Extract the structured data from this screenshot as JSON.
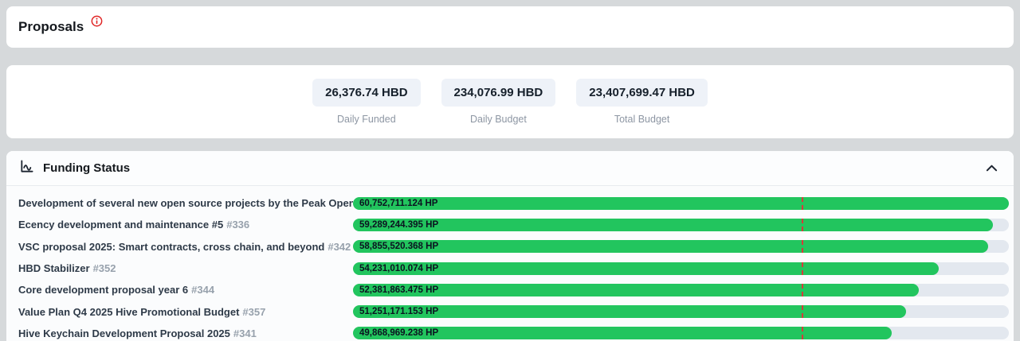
{
  "page_background": "#d6d9db",
  "header": {
    "title": "Proposals",
    "info_icon": "info-icon",
    "info_color": "#e02525"
  },
  "stats": [
    {
      "value": "26,376.74 HBD",
      "label": "Daily Funded"
    },
    {
      "value": "234,076.99 HBD",
      "label": "Daily Budget"
    },
    {
      "value": "23,407,699.47 HBD",
      "label": "Total Budget"
    }
  ],
  "funding_section": {
    "title": "Funding Status",
    "chart_icon": "line-chart-icon",
    "collapse_icon": "chevron-up-icon"
  },
  "chart_data": {
    "type": "bar",
    "orientation": "horizontal",
    "unit": "HP",
    "bar_color": "#22c55e",
    "track_color": "#e3e8ef",
    "threshold_line_color": "#d63a3a",
    "threshold_percent": 68.4,
    "max_value": 60752711.124,
    "xlim": [
      0,
      60752711.124
    ],
    "proposals": [
      {
        "title": "Development of several new open source projects by the Peak Open tea...",
        "id": "",
        "value": 60752711.124,
        "value_label": "60,752,711.124 HP"
      },
      {
        "title": "Ecency development and maintenance #5",
        "id": "#336",
        "value": 59289244.395,
        "value_label": "59,289,244.395 HP"
      },
      {
        "title": "VSC proposal 2025: Smart contracts, cross chain, and beyond",
        "id": "#342",
        "value": 58855520.368,
        "value_label": "58,855,520.368 HP"
      },
      {
        "title": "HBD Stabilizer",
        "id": "#352",
        "value": 54231010.074,
        "value_label": "54,231,010.074 HP"
      },
      {
        "title": "Core development proposal year 6",
        "id": "#344",
        "value": 52381863.475,
        "value_label": "52,381,863.475 HP"
      },
      {
        "title": "Value Plan Q4 2025 Hive Promotional Budget",
        "id": "#357",
        "value": 51251171.153,
        "value_label": "51,251,171.153 HP"
      },
      {
        "title": "Hive Keychain Development Proposal 2025",
        "id": "#341",
        "value": 49868969.238,
        "value_label": "49,868,969.238 HP"
      }
    ]
  }
}
